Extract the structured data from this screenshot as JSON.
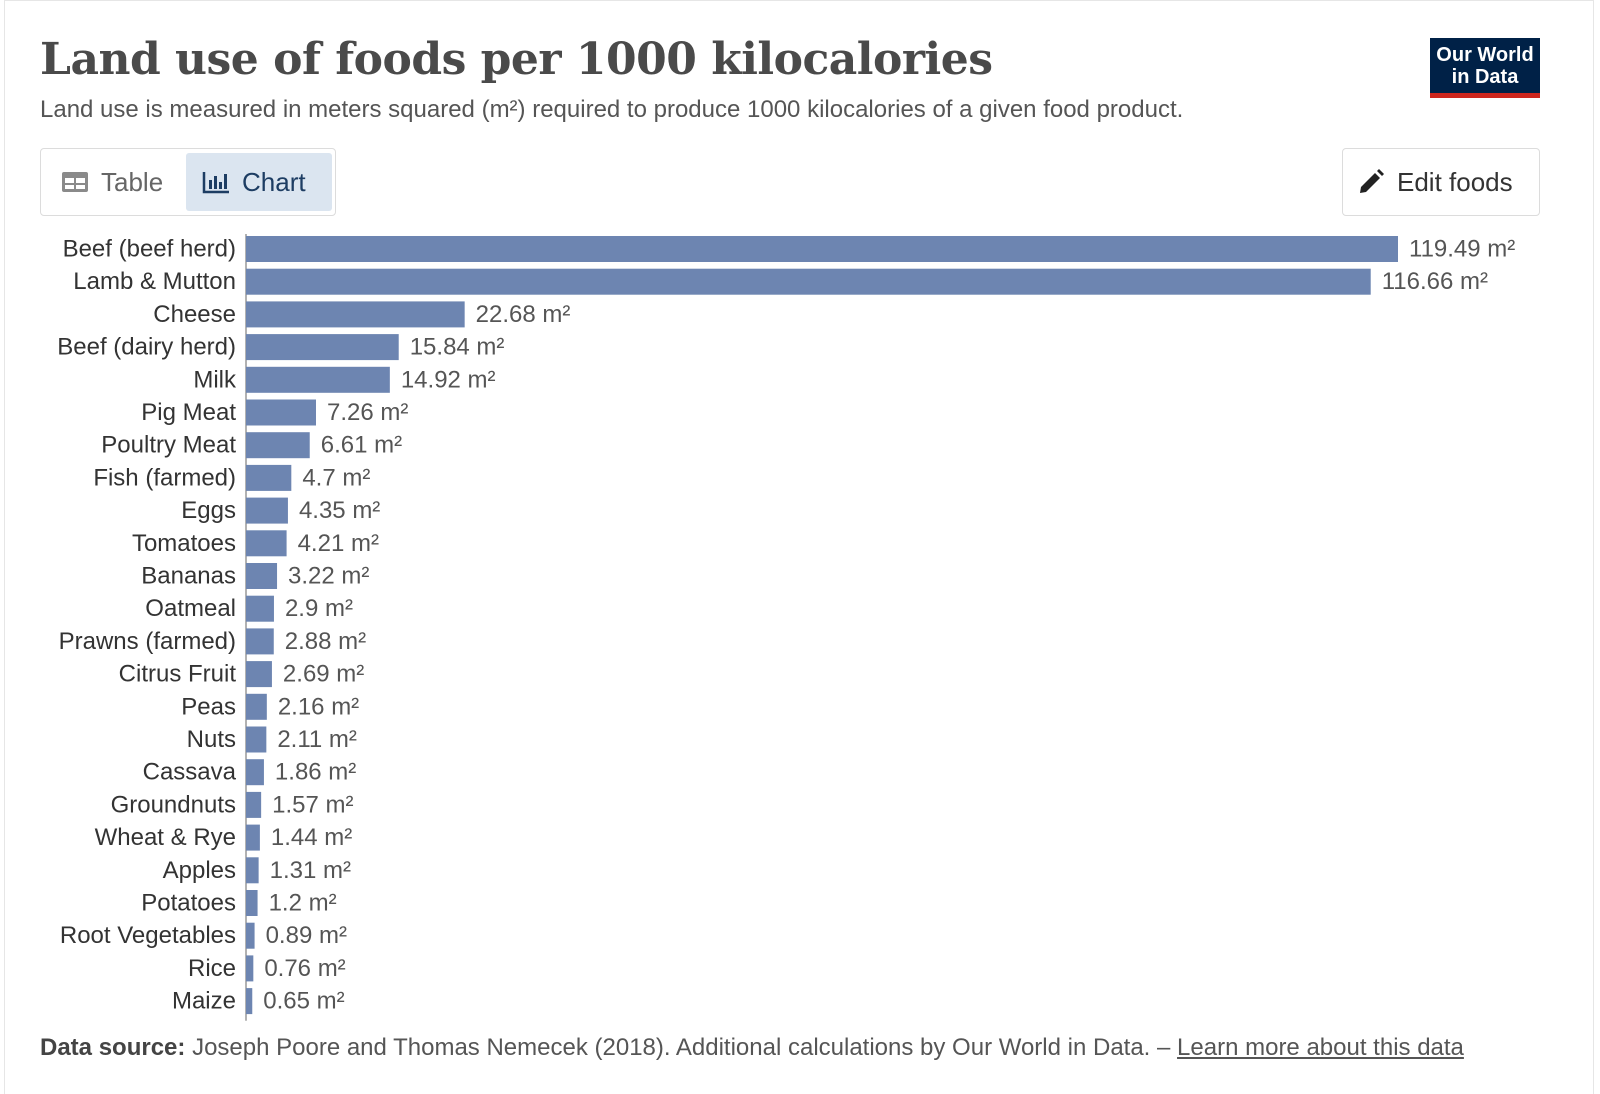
{
  "header": {
    "title": "Land use of foods per 1000 kilocalories",
    "subtitle": "Land use is measured in meters squared (m²) required to produce 1000 kilocalories of a given food product.",
    "logo_line1": "Our World",
    "logo_line2": "in Data"
  },
  "tabs": {
    "table_label": "Table",
    "chart_label": "Chart"
  },
  "edit_label": "Edit foods",
  "footer": {
    "source_label": "Data source:",
    "source_text": "Joseph Poore and Thomas Nemecek (2018). Additional calculations by Our World in Data. –",
    "link_text": "Learn more about this data"
  },
  "colors": {
    "bar": "#6d85b1",
    "logo_bg": "#002147",
    "logo_accent": "#ce261e",
    "active_tab": "#dbe5f0"
  },
  "chart_data": {
    "type": "bar",
    "orientation": "horizontal",
    "unit": "m²",
    "categories": [
      "Beef (beef herd)",
      "Lamb & Mutton",
      "Cheese",
      "Beef (dairy herd)",
      "Milk",
      "Pig Meat",
      "Poultry Meat",
      "Fish (farmed)",
      "Eggs",
      "Tomatoes",
      "Bananas",
      "Oatmeal",
      "Prawns (farmed)",
      "Citrus Fruit",
      "Peas",
      "Nuts",
      "Cassava",
      "Groundnuts",
      "Wheat & Rye",
      "Apples",
      "Potatoes",
      "Root Vegetables",
      "Rice",
      "Maize"
    ],
    "values": [
      119.49,
      116.66,
      22.68,
      15.84,
      14.92,
      7.26,
      6.61,
      4.7,
      4.35,
      4.21,
      3.22,
      2.9,
      2.88,
      2.69,
      2.16,
      2.11,
      1.86,
      1.57,
      1.44,
      1.31,
      1.2,
      0.89,
      0.76,
      0.65
    ],
    "labels": [
      "119.49 m²",
      "116.66 m²",
      "22.68 m²",
      "15.84 m²",
      "14.92 m²",
      "7.26 m²",
      "6.61 m²",
      "4.7 m²",
      "4.35 m²",
      "4.21 m²",
      "3.22 m²",
      "2.9 m²",
      "2.88 m²",
      "2.69 m²",
      "2.16 m²",
      "2.11 m²",
      "1.86 m²",
      "1.57 m²",
      "1.44 m²",
      "1.31 m²",
      "1.2 m²",
      "0.89 m²",
      "0.76 m²",
      "0.65 m²"
    ],
    "xlim": [
      0,
      119.49
    ],
    "grid": false,
    "legend": "none"
  }
}
